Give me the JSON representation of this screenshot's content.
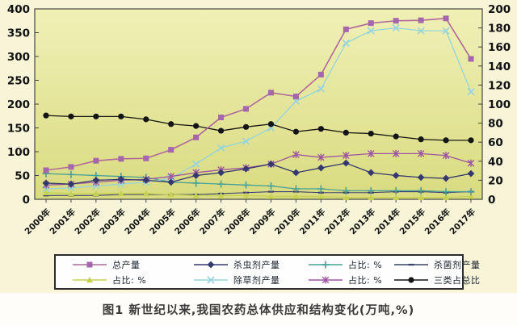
{
  "figure": {
    "caption": "图1  新世纪以来,我国农药总体供应和结构变化(万吨,%)"
  },
  "chart_data": {
    "type": "line",
    "title": "",
    "x_categories": [
      "2000年",
      "2001年",
      "2002年",
      "2003年",
      "2004年",
      "2005年",
      "2006年",
      "2007年",
      "2008年",
      "2009年",
      "2010年",
      "2011年",
      "2012年",
      "2013年",
      "2014年",
      "2015年",
      "2016年",
      "2017年"
    ],
    "left_axis": {
      "min": 0,
      "max": 400,
      "step": 50,
      "tick_labels": [
        "400",
        "350",
        "300",
        "250",
        "200",
        "150",
        "100",
        "50",
        "0"
      ]
    },
    "right_axis": {
      "min": 0,
      "max": 200,
      "step": 20,
      "tick_labels": [
        "200",
        "180",
        "160",
        "140",
        "120",
        "100",
        "80",
        "60",
        "40",
        "20",
        "0"
      ]
    },
    "grid": "off",
    "legend_position": "bottom-box",
    "legend_rows": [
      [
        0,
        1,
        2,
        3
      ],
      [
        4,
        5,
        6,
        7
      ]
    ],
    "render_order": [
      3,
      4,
      2,
      5,
      6,
      1,
      7,
      0
    ],
    "series": [
      {
        "name": "总产量",
        "axis": "left",
        "marker": "square",
        "color": "#b0689a",
        "marker_color": "#a566ae",
        "values": [
          61,
          68,
          81,
          85,
          86,
          104,
          130,
          172,
          190,
          224,
          216,
          262,
          357,
          370,
          375,
          376,
          380,
          295
        ]
      },
      {
        "name": "杀虫剂产量",
        "axis": "right",
        "marker": "diamond",
        "color": "#35386e",
        "marker_color": "#35386e",
        "values": [
          17,
          16,
          20,
          21,
          20,
          18,
          25,
          28,
          32,
          37,
          28,
          33,
          38,
          28,
          25,
          23,
          22,
          27
        ]
      },
      {
        "name": "占比: %",
        "axis": "right",
        "marker": "plus",
        "color": "#47a098",
        "marker_color": "#47a098",
        "values": [
          27,
          26,
          25,
          24,
          23,
          18,
          17,
          16,
          15,
          14,
          11,
          11,
          9,
          9,
          9,
          9,
          8,
          8
        ]
      },
      {
        "name": "杀菌剂产量",
        "axis": "right",
        "marker": "dash",
        "color": "#3c4070",
        "marker_color": "#3c4070",
        "values": [
          4,
          4,
          4,
          5,
          5,
          5,
          5,
          6,
          7,
          8,
          8,
          7,
          7,
          7,
          8,
          8,
          7,
          8
        ]
      },
      {
        "name": "占比: %",
        "axis": "right",
        "marker": "triangle",
        "color": "#c6d152",
        "marker_color": "#c6d152",
        "values": [
          7,
          6,
          6,
          6,
          6,
          5,
          4,
          4,
          4,
          3,
          3,
          3,
          2,
          2,
          2,
          2,
          2,
          3
        ]
      },
      {
        "name": "除草剂产量",
        "axis": "right",
        "marker": "xcross",
        "color": "#96d3dc",
        "marker_color": "#96d3dc",
        "values": [
          11,
          12,
          14,
          16,
          18,
          22,
          37,
          54,
          61,
          75,
          103,
          116,
          164,
          177,
          180,
          177,
          177,
          113
        ]
      },
      {
        "name": "占比: %",
        "axis": "right",
        "marker": "asterisk",
        "color": "#9e55a0",
        "marker_color": "#9e55a0",
        "values": [
          15,
          16,
          18,
          20,
          21,
          24,
          28,
          31,
          33,
          37,
          47,
          44,
          46,
          48,
          48,
          48,
          46,
          38
        ]
      },
      {
        "name": "三类占总比",
        "axis": "right",
        "marker": "circle",
        "color": "#141414",
        "marker_color": "#141414",
        "values": [
          88,
          87,
          87,
          87,
          84,
          79,
          77,
          72,
          76,
          79,
          71,
          74,
          70,
          69,
          66,
          63,
          62,
          62
        ]
      }
    ],
    "plot_colors": {
      "bg_top": "#f0f0b6",
      "bg_bottom": "#d9db80",
      "frame": "#444444",
      "outer_bg": "#f7f4d8"
    }
  }
}
